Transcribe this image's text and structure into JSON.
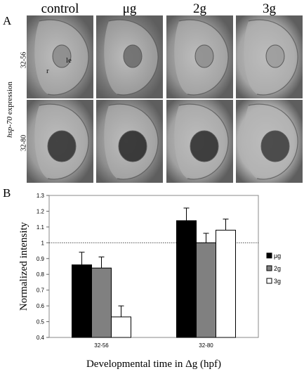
{
  "panel_a": {
    "letter": "A",
    "columns": [
      "control",
      "μg",
      "2g",
      "3g"
    ],
    "rows": [
      "32-56",
      "32-80"
    ],
    "side_label_italic": "hsp-70",
    "side_label_rest": " expression",
    "image_labels": {
      "retina": "r",
      "lens": "le"
    }
  },
  "panel_b": {
    "letter": "B"
  },
  "chart_data": {
    "type": "bar",
    "categories": [
      "32-56",
      "32-80"
    ],
    "series": [
      {
        "name": "μg",
        "values": [
          0.86,
          1.14
        ],
        "errors": [
          0.08,
          0.08
        ],
        "color": "#000000"
      },
      {
        "name": "2g",
        "values": [
          0.84,
          1.0
        ],
        "errors": [
          0.07,
          0.06
        ],
        "color": "#808080"
      },
      {
        "name": "3g",
        "values": [
          0.53,
          1.08
        ],
        "errors": [
          0.07,
          0.07
        ],
        "color": "#ffffff"
      }
    ],
    "xlabel": "Developmental time in Δg (hpf)",
    "ylabel": "Normalized intensity",
    "ylim": [
      0.4,
      1.3
    ],
    "yticks": [
      "0.4",
      "0.5",
      "0.6",
      "0.7",
      "0.8",
      "0.9",
      "1",
      "1.1",
      "1.2",
      "1.3"
    ],
    "reference_line": 1,
    "legend_position": "right",
    "grid": false
  }
}
